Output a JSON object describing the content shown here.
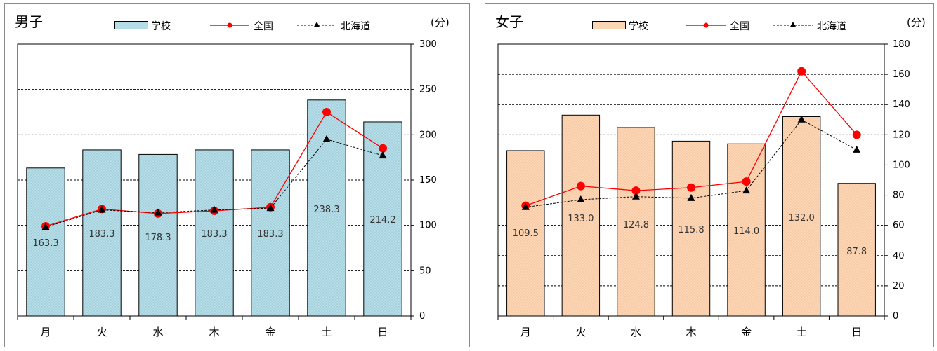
{
  "unit": "(分)",
  "legend": {
    "school": "学校",
    "national": "全国",
    "hokkaido": "北海道"
  },
  "colors": {
    "boys_bar": "#b6dde7",
    "girls_bar": "#fcd5b5",
    "national_line": "#ff0000",
    "hokkaido_line": "#000000",
    "gridline": "#000000"
  },
  "chart_data": [
    {
      "type": "bar",
      "title": "男子",
      "categories": [
        "月",
        "火",
        "水",
        "木",
        "金",
        "土",
        "日"
      ],
      "ylim": [
        0,
        300
      ],
      "yticks": [
        "0",
        "50",
        "100",
        "150",
        "200",
        "250",
        "300"
      ],
      "grid": "dashed horizontal",
      "legend_position": "top",
      "bar_labels": [
        "163.3",
        "183.3",
        "178.3",
        "183.3",
        "183.3",
        "238.3",
        "214.2"
      ],
      "series": [
        {
          "name": "学校",
          "kind": "bar",
          "values": [
            163.3,
            183.3,
            178.3,
            183.3,
            183.3,
            238.3,
            214.2
          ]
        },
        {
          "name": "全国",
          "kind": "line",
          "values": [
            99,
            118,
            113,
            116,
            120,
            225,
            185
          ]
        },
        {
          "name": "北海道",
          "kind": "line",
          "values": [
            98,
            117,
            114,
            117,
            119,
            195,
            177
          ]
        }
      ]
    },
    {
      "type": "bar",
      "title": "女子",
      "categories": [
        "月",
        "火",
        "水",
        "木",
        "金",
        "土",
        "日"
      ],
      "ylim": [
        0,
        180
      ],
      "yticks": [
        "0",
        "20",
        "40",
        "60",
        "80",
        "100",
        "120",
        "140",
        "160",
        "180"
      ],
      "grid": "dashed horizontal",
      "legend_position": "top",
      "bar_labels": [
        "109.5",
        "133.0",
        "124.8",
        "115.8",
        "114.0",
        "132.0",
        "87.8"
      ],
      "series": [
        {
          "name": "学校",
          "kind": "bar",
          "values": [
            109.5,
            133.0,
            124.8,
            115.8,
            114.0,
            132.0,
            87.8
          ]
        },
        {
          "name": "全国",
          "kind": "line",
          "values": [
            73,
            86,
            83,
            85,
            89,
            162,
            120
          ]
        },
        {
          "name": "北海道",
          "kind": "line",
          "values": [
            72,
            77,
            79,
            78,
            83,
            130,
            110
          ]
        }
      ]
    }
  ]
}
